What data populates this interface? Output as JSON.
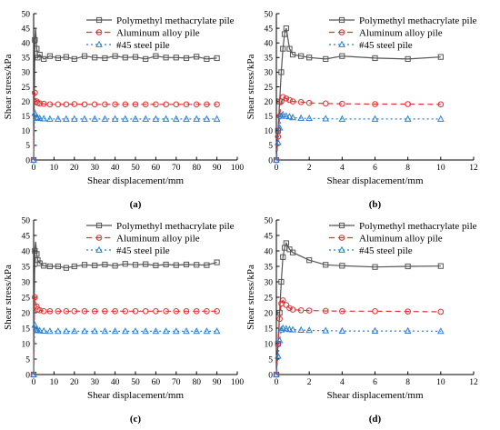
{
  "series_styles": [
    {
      "color": "#555555",
      "marker": "square",
      "dash": ""
    },
    {
      "color": "#e03030",
      "marker": "circle",
      "dash": "6,4"
    },
    {
      "color": "#2a7fd4",
      "marker": "triangle",
      "dash": "2,3"
    }
  ],
  "chart_data": [
    {
      "type": "line",
      "panel_label": "(a)",
      "xlabel": "Shear displacement/mm",
      "ylabel": "Shear stress/kPa",
      "xlim": [
        0,
        100
      ],
      "ylim": [
        0,
        50
      ],
      "xticks": [
        0,
        10,
        20,
        30,
        40,
        50,
        60,
        70,
        80,
        90,
        100
      ],
      "yticks": [
        0,
        5,
        10,
        15,
        20,
        25,
        30,
        35,
        40,
        45,
        50
      ],
      "legend": "top-right",
      "series": [
        {
          "name": "Polymethyl methacrylate pile",
          "x": [
            0,
            0.3,
            0.6,
            1,
            1.5,
            2,
            3,
            5,
            8,
            12,
            16,
            20,
            25,
            30,
            35,
            40,
            45,
            50,
            55,
            60,
            65,
            70,
            75,
            80,
            85,
            90
          ],
          "y": [
            0,
            20,
            41,
            45,
            38,
            35,
            36,
            34.5,
            35.5,
            34.8,
            35.2,
            34.5,
            35.5,
            35,
            34.8,
            35.5,
            35,
            35.2,
            34.5,
            35.5,
            35,
            35,
            34.8,
            35.3,
            34.5,
            34.8
          ]
        },
        {
          "name": "Aluminum alloy pile",
          "x": [
            0,
            0.3,
            0.6,
            1,
            1.5,
            2,
            3,
            5,
            8,
            12,
            16,
            20,
            25,
            30,
            35,
            40,
            45,
            50,
            55,
            60,
            65,
            70,
            75,
            80,
            85,
            90
          ],
          "y": [
            0,
            15,
            23,
            21,
            20,
            19.5,
            19.3,
            19.2,
            19,
            19,
            19,
            19.1,
            19,
            19,
            19,
            19,
            19,
            19,
            19,
            19,
            19,
            19,
            19,
            19,
            19,
            19
          ]
        },
        {
          "name": "#45 steel pile",
          "x": [
            0,
            0.3,
            0.6,
            1,
            1.5,
            2,
            3,
            5,
            8,
            12,
            16,
            20,
            25,
            30,
            35,
            40,
            45,
            50,
            55,
            60,
            65,
            70,
            75,
            80,
            85,
            90
          ],
          "y": [
            0,
            10,
            16,
            15,
            14.5,
            14.3,
            14.2,
            14.1,
            14,
            14,
            14,
            14,
            14,
            14,
            14,
            14,
            14,
            14,
            14,
            14,
            14,
            14,
            14,
            14,
            14,
            14
          ]
        }
      ]
    },
    {
      "type": "line",
      "panel_label": "(b)",
      "xlabel": "Shear displacement/mm",
      "ylabel": "Shear stress/kPa",
      "xlim": [
        0,
        12
      ],
      "ylim": [
        0,
        50
      ],
      "xticks": [
        0,
        2,
        4,
        6,
        8,
        10,
        12
      ],
      "yticks": [
        0,
        5,
        10,
        15,
        20,
        25,
        30,
        35,
        40,
        45,
        50
      ],
      "legend": "top-right",
      "series": [
        {
          "name": "Polymethyl methacrylate pile",
          "x": [
            0,
            0.1,
            0.2,
            0.3,
            0.4,
            0.5,
            0.6,
            0.8,
            1,
            1.5,
            2,
            3,
            4,
            6,
            8,
            10
          ],
          "y": [
            0,
            10,
            20,
            30,
            38,
            43,
            45,
            38,
            36,
            35.5,
            35,
            34.5,
            35.5,
            34.8,
            34.5,
            35.2
          ]
        },
        {
          "name": "Aluminum alloy pile",
          "x": [
            0,
            0.1,
            0.2,
            0.3,
            0.4,
            0.6,
            0.8,
            1,
            1.5,
            2,
            3,
            4,
            6,
            8,
            10
          ],
          "y": [
            0,
            8,
            15,
            20,
            21.5,
            21,
            20.5,
            20,
            19.8,
            19.5,
            19.3,
            19.2,
            19.1,
            19.1,
            19
          ]
        },
        {
          "name": "#45 steel pile",
          "x": [
            0,
            0.1,
            0.2,
            0.3,
            0.4,
            0.6,
            0.8,
            1,
            1.5,
            2,
            3,
            4,
            6,
            8,
            10
          ],
          "y": [
            0,
            6,
            11,
            15,
            15.5,
            15,
            14.8,
            14.5,
            14.3,
            14.2,
            14.1,
            14,
            14,
            14,
            14
          ]
        }
      ]
    },
    {
      "type": "line",
      "panel_label": "(c)",
      "xlabel": "Shear displacement/mm",
      "ylabel": "Shear stress/kPa",
      "xlim": [
        0,
        100
      ],
      "ylim": [
        0,
        50
      ],
      "xticks": [
        0,
        10,
        20,
        30,
        40,
        50,
        60,
        70,
        80,
        90,
        100
      ],
      "yticks": [
        0,
        5,
        10,
        15,
        20,
        25,
        30,
        35,
        40,
        45,
        50
      ],
      "legend": "top-right",
      "series": [
        {
          "name": "Polymethyl methacrylate pile",
          "x": [
            0,
            0.3,
            0.6,
            1,
            1.5,
            2,
            3,
            5,
            8,
            12,
            16,
            20,
            25,
            30,
            35,
            40,
            45,
            50,
            55,
            60,
            65,
            70,
            75,
            80,
            85,
            90
          ],
          "y": [
            0,
            25,
            40,
            43,
            39,
            37,
            36,
            35.2,
            35,
            35,
            34.5,
            35,
            35.5,
            35.3,
            35.6,
            35.2,
            35.8,
            35.5,
            35.7,
            35.3,
            35.6,
            35.4,
            35.6,
            35.5,
            35.4,
            36.3
          ]
        },
        {
          "name": "Aluminum alloy pile",
          "x": [
            0,
            0.3,
            0.6,
            1,
            1.5,
            2,
            3,
            5,
            8,
            12,
            16,
            20,
            25,
            30,
            35,
            40,
            45,
            50,
            55,
            60,
            65,
            70,
            75,
            80,
            85,
            90
          ],
          "y": [
            0,
            18,
            25,
            23,
            22,
            21,
            20.8,
            20.5,
            20.5,
            20.5,
            20.5,
            20.5,
            20.5,
            20.5,
            20.5,
            20.5,
            20.5,
            20.5,
            20.5,
            20.5,
            20.5,
            20.5,
            20.5,
            20.5,
            20.5,
            20.5
          ]
        },
        {
          "name": "#45 steel pile",
          "x": [
            0,
            0.3,
            0.6,
            1,
            1.5,
            2,
            3,
            5,
            8,
            12,
            16,
            20,
            25,
            30,
            35,
            40,
            45,
            50,
            55,
            60,
            65,
            70,
            75,
            80,
            85,
            90
          ],
          "y": [
            0,
            10,
            16,
            15,
            14.5,
            14.3,
            14.2,
            14.1,
            14,
            14,
            14,
            14,
            14,
            14,
            14,
            14,
            14,
            14,
            14,
            14,
            14,
            14,
            14,
            14,
            14,
            14
          ]
        }
      ]
    },
    {
      "type": "line",
      "panel_label": "(d)",
      "xlabel": "Shear displacement/mm",
      "ylabel": "Shear stress/kPa",
      "xlim": [
        0,
        12
      ],
      "ylim": [
        0,
        50
      ],
      "xticks": [
        0,
        2,
        4,
        6,
        8,
        10,
        12
      ],
      "yticks": [
        0,
        5,
        10,
        15,
        20,
        25,
        30,
        35,
        40,
        45,
        50
      ],
      "legend": "top-right",
      "series": [
        {
          "name": "Polymethyl methacrylate pile",
          "x": [
            0,
            0.1,
            0.2,
            0.3,
            0.4,
            0.5,
            0.6,
            0.8,
            1,
            2,
            3,
            4,
            6,
            8,
            10
          ],
          "y": [
            0,
            10,
            20,
            30,
            38,
            41,
            42.5,
            40.5,
            39.5,
            37,
            35.5,
            35.2,
            34.8,
            35,
            35.1
          ]
        },
        {
          "name": "Aluminum alloy pile",
          "x": [
            0,
            0.1,
            0.2,
            0.3,
            0.4,
            0.6,
            0.8,
            1,
            1.5,
            2,
            3,
            4,
            6,
            8,
            10
          ],
          "y": [
            0,
            10,
            18,
            23,
            24,
            22.5,
            21.5,
            21,
            20.8,
            20.7,
            20.6,
            20.5,
            20.5,
            20.4,
            20.3
          ]
        },
        {
          "name": "#45 steel pile",
          "x": [
            0,
            0.1,
            0.2,
            0.3,
            0.4,
            0.6,
            0.8,
            1,
            1.5,
            2,
            3,
            4,
            6,
            8,
            10
          ],
          "y": [
            0,
            6,
            11,
            14.5,
            15,
            14.8,
            14.6,
            14.5,
            14.4,
            14.3,
            14.2,
            14.1,
            14.1,
            14.1,
            14
          ]
        }
      ]
    }
  ]
}
